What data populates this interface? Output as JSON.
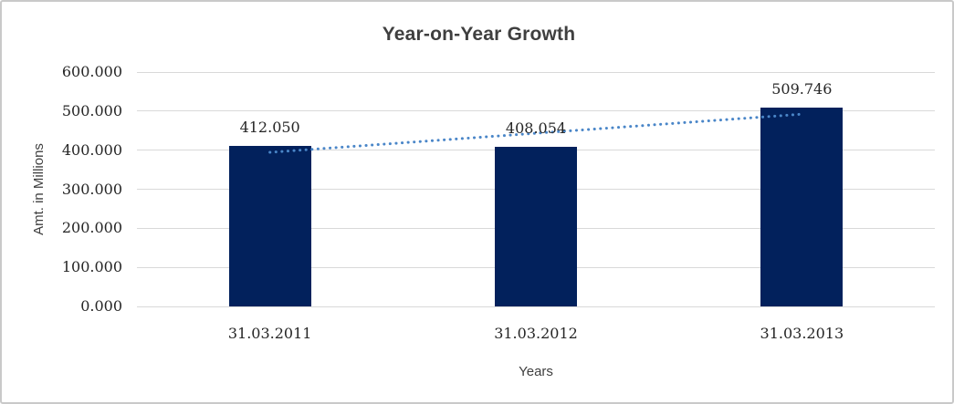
{
  "window": {
    "background_color": "#ffffff",
    "border_color": "#c9c9c9"
  },
  "chart_data": {
    "type": "bar",
    "title": "Year-on-Year Growth",
    "xlabel": "Years",
    "ylabel": "Amt. in Millions",
    "categories": [
      "31.03.2011",
      "31.03.2012",
      "31.03.2013"
    ],
    "values": [
      412.05,
      408.054,
      509.746
    ],
    "data_labels": [
      "412.050",
      "408.054",
      "509.746"
    ],
    "y_ticks": [
      "600.000",
      "500.000",
      "400.000",
      "300.000",
      "200.000",
      "100.000",
      "0.000"
    ],
    "ylim": [
      0,
      600
    ],
    "grid": true,
    "legend": "none",
    "bar_color": "#02215c",
    "gridline_color": "#d9d9d9",
    "label_color": "#262626",
    "title_color": "#3f3f3f",
    "trendline": {
      "type": "linear",
      "style": "dotted",
      "color": "#4a86c8",
      "fit_values": [
        394.4,
        443.3,
        492.1
      ]
    }
  }
}
